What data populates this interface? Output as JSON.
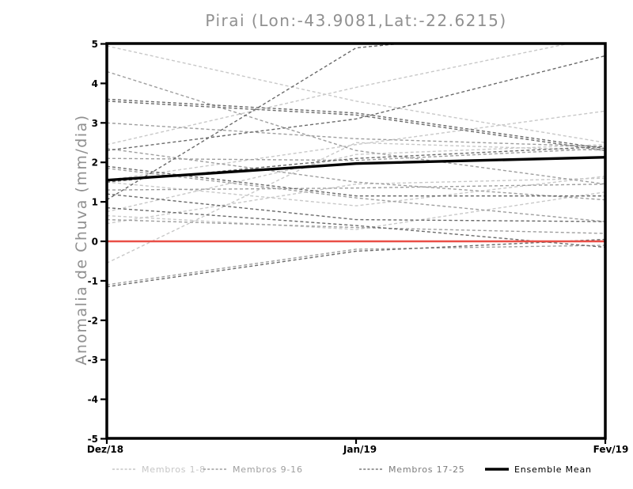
{
  "title": "Pirai (Lon:-43.9081,Lat:-22.6215)",
  "axes": {
    "ylabel": "Anomalia de Chuva (mm/dia)",
    "y_ticks": [
      5,
      4,
      3,
      2,
      1,
      0,
      -1,
      -2,
      -3,
      -4,
      -5
    ],
    "x_ticks": [
      "Dez/18",
      "Jan/19",
      "Fev/19"
    ],
    "ylim": [
      -5,
      5
    ]
  },
  "legend": {
    "items": [
      {
        "label": "Membros 1-8",
        "color": "#c6c6c6",
        "style": "dashed"
      },
      {
        "label": "Membros 9-16",
        "color": "#9e9e9e",
        "style": "dashed"
      },
      {
        "label": "Membros 17-25",
        "color": "#7c7c7c",
        "style": "dashed"
      },
      {
        "label": "Ensemble Mean",
        "color": "#000000",
        "style": "solid"
      }
    ]
  },
  "chart_data": {
    "type": "line",
    "title": "Pirai (Lon:-43.9081,Lat:-22.6215)",
    "xlabel": "",
    "ylabel": "Anomalia de Chuva (mm/dia)",
    "x": [
      "Dez/18",
      "Jan/19",
      "Fev/19"
    ],
    "ylim": [
      -5,
      5
    ],
    "grid": false,
    "legend_position": "bottom",
    "zero_line": {
      "name": "Zero",
      "color": "#e94f47",
      "values": [
        0,
        0,
        0
      ]
    },
    "ensemble_mean": {
      "name": "Ensemble Mean",
      "color": "#000000",
      "values": [
        1.55,
        1.97,
        2.13
      ]
    },
    "member_groups": [
      {
        "name": "Membros 1-8",
        "color": "#c8c8c8",
        "members": [
          [
            4.95,
            3.55,
            2.5
          ],
          [
            2.45,
            3.9,
            5.2
          ],
          [
            1.55,
            2.45,
            3.3
          ],
          [
            1.5,
            0.9,
            1.65
          ],
          [
            0.75,
            2.2,
            2.45
          ],
          [
            0.65,
            0.3,
            1.25
          ],
          [
            0.45,
            1.45,
            1.6
          ],
          [
            -0.55,
            2.5,
            2.3
          ]
        ]
      },
      {
        "name": "Membros 9-16",
        "color": "#9e9e9e",
        "members": [
          [
            4.3,
            2.3,
            1.45
          ],
          [
            3.0,
            2.6,
            2.4
          ],
          [
            2.35,
            1.5,
            1.05
          ],
          [
            2.1,
            2.05,
            2.35
          ],
          [
            1.85,
            1.1,
            0.5
          ],
          [
            1.3,
            1.35,
            1.45
          ],
          [
            0.55,
            0.35,
            0.2
          ],
          [
            -1.1,
            -0.2,
            -0.1
          ]
        ]
      },
      {
        "name": "Membros 17-25",
        "color": "#6a6a6a",
        "members": [
          [
            3.6,
            3.25,
            2.35
          ],
          [
            3.55,
            3.2,
            2.3
          ],
          [
            2.3,
            3.1,
            4.7
          ],
          [
            1.05,
            4.9,
            5.5
          ],
          [
            1.9,
            1.15,
            1.15
          ],
          [
            1.5,
            2.1,
            2.4
          ],
          [
            1.2,
            0.55,
            0.5
          ],
          [
            0.85,
            0.4,
            -0.15
          ],
          [
            -1.15,
            -0.25,
            0.05
          ]
        ]
      }
    ]
  }
}
